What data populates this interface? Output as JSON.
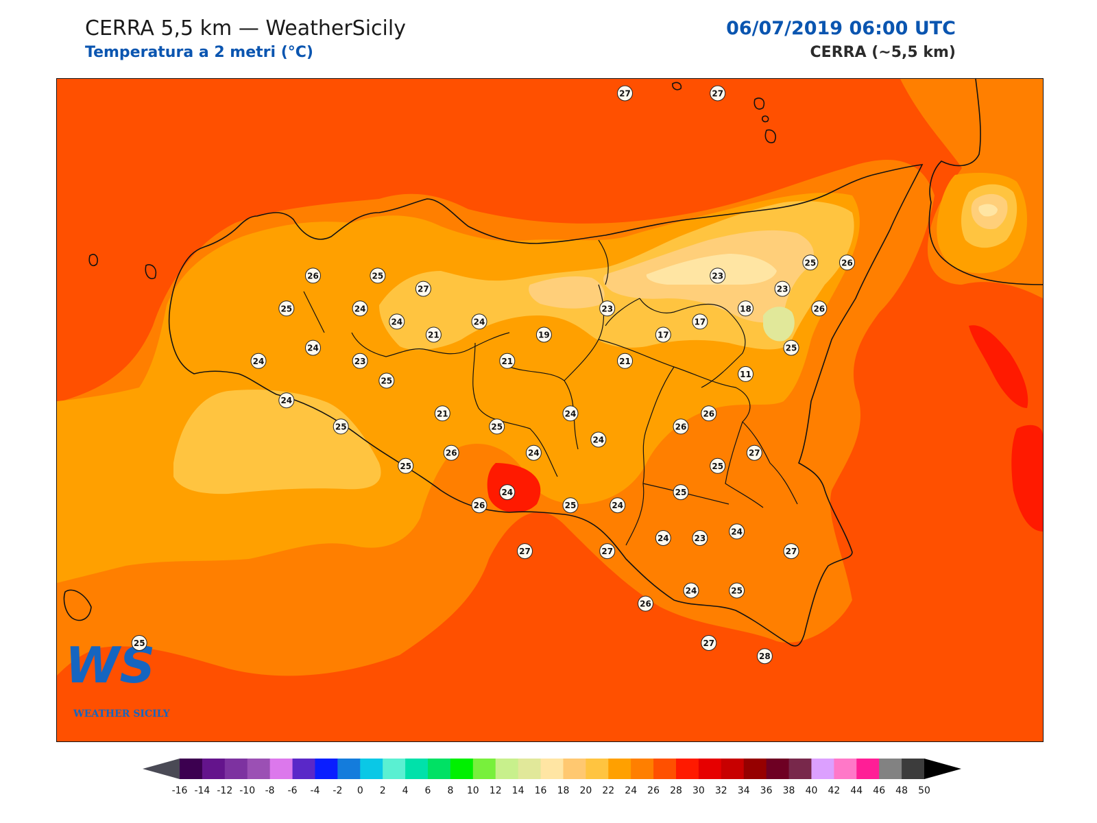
{
  "header": {
    "title": "CERRA 5,5 km — WeatherSicily",
    "subtitle": "Temperatura a 2 metri (°C)",
    "datetime": "06/07/2019 06:00 UTC",
    "model": "CERRA (~5,5 km)"
  },
  "logo": {
    "letters": "WS",
    "text": "WEATHER SICILY"
  },
  "colors": {
    "sea": "#ff5000",
    "t24": "#ff7f00",
    "t22": "#ffa000",
    "t20": "#ffc440",
    "t18": "#ffcf7a",
    "t16": "#ffe5a3",
    "t14": "#e1e89a",
    "t28": "#ff1a00",
    "coast": "#111111",
    "label_fill": "#fffaf0"
  },
  "station_labels": [
    {
      "v": "27",
      "lon": 14.86,
      "lat": 39.64
    },
    {
      "v": "27",
      "lon": 15.49,
      "lat": 39.64
    },
    {
      "v": "26",
      "lon": 12.74,
      "lat": 38.25
    },
    {
      "v": "25",
      "lon": 13.18,
      "lat": 38.25
    },
    {
      "v": "27",
      "lon": 13.49,
      "lat": 38.15
    },
    {
      "v": "25",
      "lon": 12.56,
      "lat": 38.0
    },
    {
      "v": "24",
      "lon": 13.06,
      "lat": 38.0
    },
    {
      "v": "24",
      "lon": 13.31,
      "lat": 37.9
    },
    {
      "v": "21",
      "lon": 13.56,
      "lat": 37.8
    },
    {
      "v": "24",
      "lon": 13.87,
      "lat": 37.9
    },
    {
      "v": "19",
      "lon": 14.31,
      "lat": 37.8
    },
    {
      "v": "23",
      "lon": 14.74,
      "lat": 38.0
    },
    {
      "v": "23",
      "lon": 15.49,
      "lat": 38.25
    },
    {
      "v": "25",
      "lon": 16.12,
      "lat": 38.35
    },
    {
      "v": "26",
      "lon": 16.37,
      "lat": 38.35
    },
    {
      "v": "23",
      "lon": 15.93,
      "lat": 38.15
    },
    {
      "v": "18",
      "lon": 15.68,
      "lat": 38.0
    },
    {
      "v": "17",
      "lon": 15.37,
      "lat": 37.9
    },
    {
      "v": "17",
      "lon": 15.12,
      "lat": 37.8
    },
    {
      "v": "26",
      "lon": 16.18,
      "lat": 38.0
    },
    {
      "v": "24",
      "lon": 12.74,
      "lat": 37.7
    },
    {
      "v": "24",
      "lon": 12.37,
      "lat": 37.6
    },
    {
      "v": "23",
      "lon": 13.06,
      "lat": 37.6
    },
    {
      "v": "25",
      "lon": 13.24,
      "lat": 37.45
    },
    {
      "v": "21",
      "lon": 14.06,
      "lat": 37.6
    },
    {
      "v": "21",
      "lon": 14.86,
      "lat": 37.6
    },
    {
      "v": "25",
      "lon": 15.99,
      "lat": 37.7
    },
    {
      "v": "11",
      "lon": 15.68,
      "lat": 37.5
    },
    {
      "v": "21",
      "lon": 13.62,
      "lat": 37.2
    },
    {
      "v": "24",
      "lon": 14.49,
      "lat": 37.2
    },
    {
      "v": "24",
      "lon": 12.56,
      "lat": 37.3
    },
    {
      "v": "25",
      "lon": 12.93,
      "lat": 37.1
    },
    {
      "v": "25",
      "lon": 13.99,
      "lat": 37.1
    },
    {
      "v": "26",
      "lon": 15.24,
      "lat": 37.1
    },
    {
      "v": "26",
      "lon": 15.43,
      "lat": 37.2
    },
    {
      "v": "24",
      "lon": 14.68,
      "lat": 37.0
    },
    {
      "v": "26",
      "lon": 13.68,
      "lat": 36.9
    },
    {
      "v": "24",
      "lon": 14.24,
      "lat": 36.9
    },
    {
      "v": "27",
      "lon": 15.74,
      "lat": 36.9
    },
    {
      "v": "25",
      "lon": 13.37,
      "lat": 36.8
    },
    {
      "v": "25",
      "lon": 15.49,
      "lat": 36.8
    },
    {
      "v": "25",
      "lon": 15.24,
      "lat": 36.6
    },
    {
      "v": "24",
      "lon": 14.06,
      "lat": 36.6
    },
    {
      "v": "26",
      "lon": 13.87,
      "lat": 36.5
    },
    {
      "v": "25",
      "lon": 14.49,
      "lat": 36.5
    },
    {
      "v": "24",
      "lon": 14.81,
      "lat": 36.5
    },
    {
      "v": "24",
      "lon": 15.62,
      "lat": 36.3
    },
    {
      "v": "23",
      "lon": 15.37,
      "lat": 36.25
    },
    {
      "v": "24",
      "lon": 15.12,
      "lat": 36.25
    },
    {
      "v": "27",
      "lon": 14.18,
      "lat": 36.15
    },
    {
      "v": "27",
      "lon": 14.74,
      "lat": 36.15
    },
    {
      "v": "27",
      "lon": 15.99,
      "lat": 36.15
    },
    {
      "v": "26",
      "lon": 15.0,
      "lat": 35.75
    },
    {
      "v": "24",
      "lon": 15.31,
      "lat": 35.85
    },
    {
      "v": "25",
      "lon": 15.62,
      "lat": 35.85
    },
    {
      "v": "27",
      "lon": 15.43,
      "lat": 35.45
    },
    {
      "v": "28",
      "lon": 15.81,
      "lat": 35.35
    },
    {
      "v": "25",
      "lon": 11.56,
      "lat": 35.45
    }
  ],
  "colorbar": {
    "ticks": [
      "-16",
      "-14",
      "-12",
      "-10",
      "-8",
      "-6",
      "-4",
      "-2",
      "0",
      "2",
      "4",
      "6",
      "8",
      "10",
      "12",
      "14",
      "16",
      "18",
      "20",
      "22",
      "24",
      "26",
      "28",
      "30",
      "32",
      "34",
      "36",
      "38",
      "40",
      "42",
      "44",
      "46",
      "48",
      "50"
    ],
    "colors": [
      "#3c0050",
      "#64148c",
      "#7d32a0",
      "#9b50b4",
      "#dc78ec",
      "#5a28c8",
      "#0a1eff",
      "#147cdc",
      "#0ac8e6",
      "#5af0d2",
      "#00e1aa",
      "#00e164",
      "#00f000",
      "#78f03c",
      "#c8f08c",
      "#e1e89a",
      "#ffe5a3",
      "#ffc870",
      "#ffc440",
      "#ffa000",
      "#ff7f00",
      "#ff5000",
      "#ff1a00",
      "#e60000",
      "#c80000",
      "#960000",
      "#6e0023",
      "#78284b",
      "#dca0ff",
      "#ff78c8",
      "#ff1e96",
      "#828282",
      "#3c3c3c"
    ],
    "under_color": "#4a4a55",
    "over_color": "#000000"
  }
}
